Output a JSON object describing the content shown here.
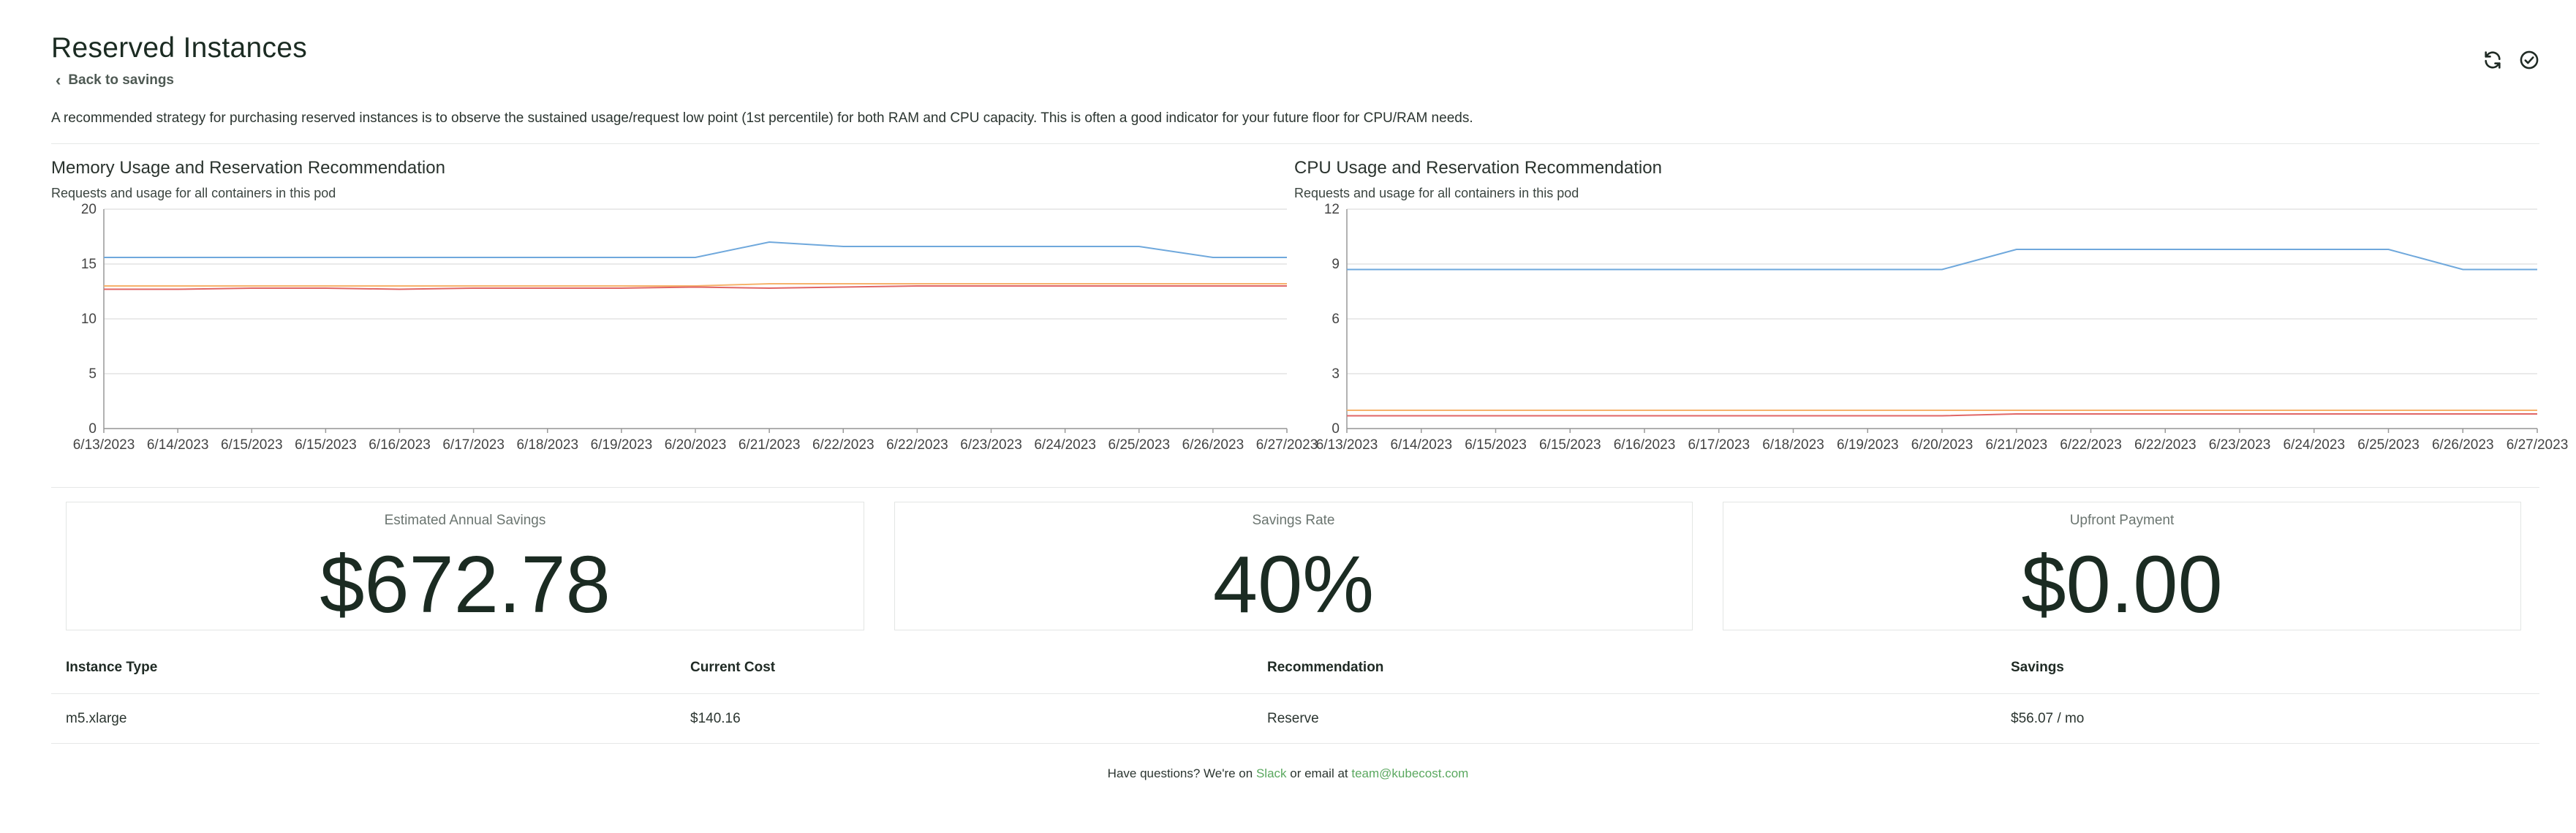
{
  "header": {
    "title": "Reserved Instances",
    "back_label": "Back to savings",
    "description": "A recommended strategy for purchasing reserved instances is to observe the sustained usage/request low point (1st percentile) for both RAM and CPU capacity. This is often a good indicator for your future floor for CPU/RAM needs.",
    "icons": [
      "refresh-icon",
      "check-circle-icon"
    ]
  },
  "charts": {
    "memory": {
      "title": "Memory Usage and Reservation Recommendation",
      "subtitle": "Requests and usage for all containers in this pod"
    },
    "cpu": {
      "title": "CPU Usage and Reservation Recommendation",
      "subtitle": "Requests and usage for all containers in this pod"
    }
  },
  "chart_data": [
    {
      "type": "line",
      "title": "Memory Usage and Reservation Recommendation",
      "x": [
        "6/13/2023",
        "6/14/2023",
        "6/15/2023",
        "6/15/2023",
        "6/16/2023",
        "6/17/2023",
        "6/18/2023",
        "6/19/2023",
        "6/20/2023",
        "6/21/2023",
        "6/22/2023",
        "6/22/2023",
        "6/23/2023",
        "6/24/2023",
        "6/25/2023",
        "6/26/2023",
        "6/27/2023"
      ],
      "ylim": [
        0,
        20
      ],
      "yticks": [
        0,
        5,
        10,
        15,
        20
      ],
      "series": [
        {
          "color": "#6fa8dc",
          "values": [
            15.6,
            15.6,
            15.6,
            15.6,
            15.6,
            15.6,
            15.6,
            15.6,
            15.6,
            17.0,
            16.6,
            16.6,
            16.6,
            16.6,
            16.6,
            15.6,
            15.6
          ]
        },
        {
          "color": "#f6b26b",
          "values": [
            13.0,
            13.0,
            13.0,
            13.0,
            13.0,
            13.0,
            13.0,
            13.0,
            13.0,
            13.2,
            13.2,
            13.2,
            13.2,
            13.2,
            13.2,
            13.2,
            13.2
          ]
        },
        {
          "color": "#e06666",
          "values": [
            12.7,
            12.7,
            12.8,
            12.8,
            12.7,
            12.8,
            12.8,
            12.8,
            12.9,
            12.8,
            12.9,
            13.0,
            13.0,
            13.0,
            13.0,
            13.0,
            13.0
          ]
        }
      ]
    },
    {
      "type": "line",
      "title": "CPU Usage and Reservation Recommendation",
      "x": [
        "6/13/2023",
        "6/14/2023",
        "6/15/2023",
        "6/15/2023",
        "6/16/2023",
        "6/17/2023",
        "6/18/2023",
        "6/19/2023",
        "6/20/2023",
        "6/21/2023",
        "6/22/2023",
        "6/22/2023",
        "6/23/2023",
        "6/24/2023",
        "6/25/2023",
        "6/26/2023",
        "6/27/2023"
      ],
      "ylim": [
        0,
        12
      ],
      "yticks": [
        0,
        3,
        6,
        9,
        12
      ],
      "series": [
        {
          "color": "#6fa8dc",
          "values": [
            8.7,
            8.7,
            8.7,
            8.7,
            8.7,
            8.7,
            8.7,
            8.7,
            8.7,
            9.8,
            9.8,
            9.8,
            9.8,
            9.8,
            9.8,
            8.7,
            8.7
          ]
        },
        {
          "color": "#f6b26b",
          "values": [
            1.0,
            1.0,
            1.0,
            1.0,
            1.0,
            1.0,
            1.0,
            1.0,
            1.0,
            1.0,
            1.0,
            1.0,
            1.0,
            1.0,
            1.0,
            1.0,
            1.0
          ]
        },
        {
          "color": "#e06666",
          "values": [
            0.7,
            0.7,
            0.7,
            0.7,
            0.7,
            0.7,
            0.7,
            0.7,
            0.7,
            0.8,
            0.8,
            0.8,
            0.8,
            0.8,
            0.8,
            0.8,
            0.8
          ]
        }
      ]
    }
  ],
  "cards": [
    {
      "label": "Estimated Annual Savings",
      "value": "$672.78"
    },
    {
      "label": "Savings Rate",
      "value": "40%"
    },
    {
      "label": "Upfront Payment",
      "value": "$0.00"
    }
  ],
  "table": {
    "headers": [
      "Instance Type",
      "Current Cost",
      "Recommendation",
      "Savings"
    ],
    "rows": [
      [
        "m5.xlarge",
        "$140.16",
        "Reserve",
        "$56.07 / mo"
      ]
    ]
  },
  "footer": {
    "prefix": "Have questions? We're on",
    "slack_label": "Slack",
    "middle": "or email at",
    "email": "team@kubecost.com"
  },
  "colors": {
    "accent_green": "#5aa85f",
    "request_line": "#6fa8dc",
    "recommend_line": "#f6b26b",
    "usage_line": "#e06666"
  }
}
